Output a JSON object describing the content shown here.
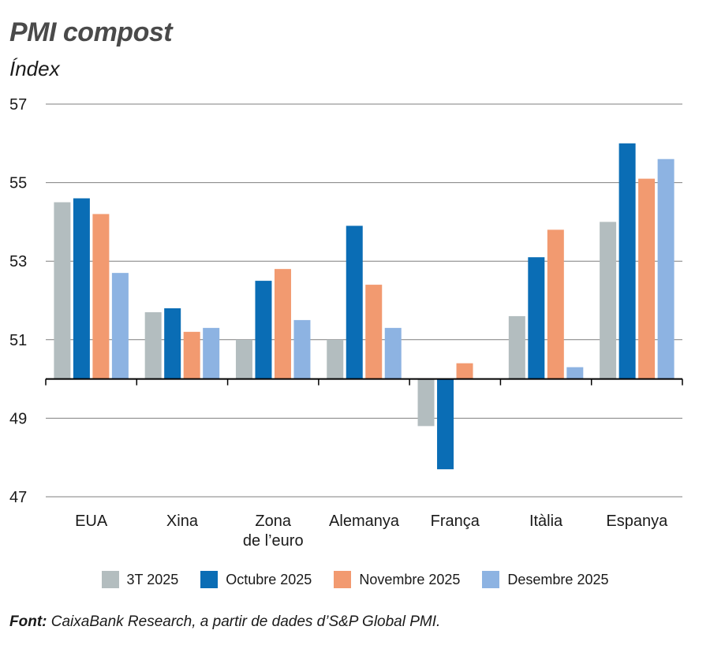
{
  "title": "PMI compost",
  "subtitle": "Índex",
  "source": {
    "label": "Font:",
    "text": "CaixaBank Research, a partir de dades d’S&P Global PMI."
  },
  "chart_data": {
    "type": "bar",
    "categories": [
      [
        "EUA"
      ],
      [
        "Xina"
      ],
      [
        "Zona",
        "de l’euro"
      ],
      [
        "Alemanya"
      ],
      [
        "França"
      ],
      [
        "Itàlia"
      ],
      [
        "Espanya"
      ]
    ],
    "baseline": 50,
    "ylim": [
      47,
      57
    ],
    "yticks": [
      47,
      49,
      51,
      53,
      55,
      57
    ],
    "grid": true,
    "legend_position": "bottom",
    "series": [
      {
        "name": "3T 2025",
        "color": "#b3bdbf",
        "values": [
          54.5,
          51.7,
          51.0,
          51.0,
          48.8,
          51.6,
          54.0
        ]
      },
      {
        "name": "Octubre 2025",
        "color": "#0a6db5",
        "values": [
          54.6,
          51.8,
          52.5,
          53.9,
          47.7,
          53.1,
          56.0
        ]
      },
      {
        "name": "Novembre 2025",
        "color": "#f29a70",
        "values": [
          54.2,
          51.2,
          52.8,
          52.4,
          50.4,
          53.8,
          55.1
        ]
      },
      {
        "name": "Desembre 2025",
        "color": "#8db3e2",
        "values": [
          52.7,
          51.3,
          51.5,
          51.3,
          null,
          50.3,
          55.6
        ]
      }
    ]
  }
}
